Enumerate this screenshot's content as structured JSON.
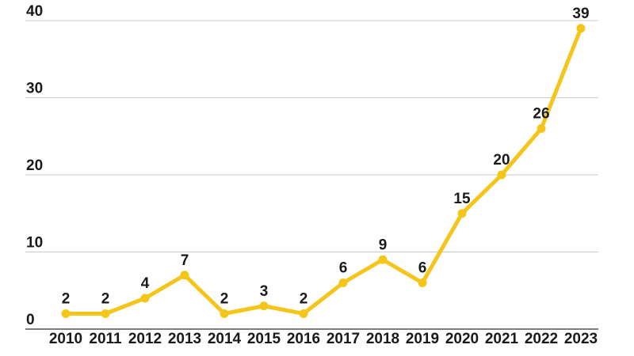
{
  "chart_data": {
    "type": "line",
    "title": "",
    "xlabel": "",
    "ylabel": "",
    "x": [
      "2010",
      "2011",
      "2012",
      "2013",
      "2014",
      "2015",
      "2016",
      "2017",
      "2018",
      "2019",
      "2020",
      "2021",
      "2022",
      "2023"
    ],
    "series": [
      {
        "name": "values",
        "values": [
          2,
          2,
          4,
          7,
          2,
          3,
          2,
          6,
          9,
          6,
          15,
          20,
          26,
          39
        ]
      }
    ],
    "y_ticks": [
      0,
      10,
      20,
      30,
      40
    ],
    "ylim": [
      0,
      40
    ],
    "grid": true,
    "legend": false,
    "data_labels_shown": true,
    "colors": {
      "line": "#F5C51A",
      "point": "#F5C51A",
      "text": "#1A1A1A",
      "grid": "#CBCBCB",
      "axis": "#7F7F7F",
      "background": "#FFFFFF"
    }
  }
}
